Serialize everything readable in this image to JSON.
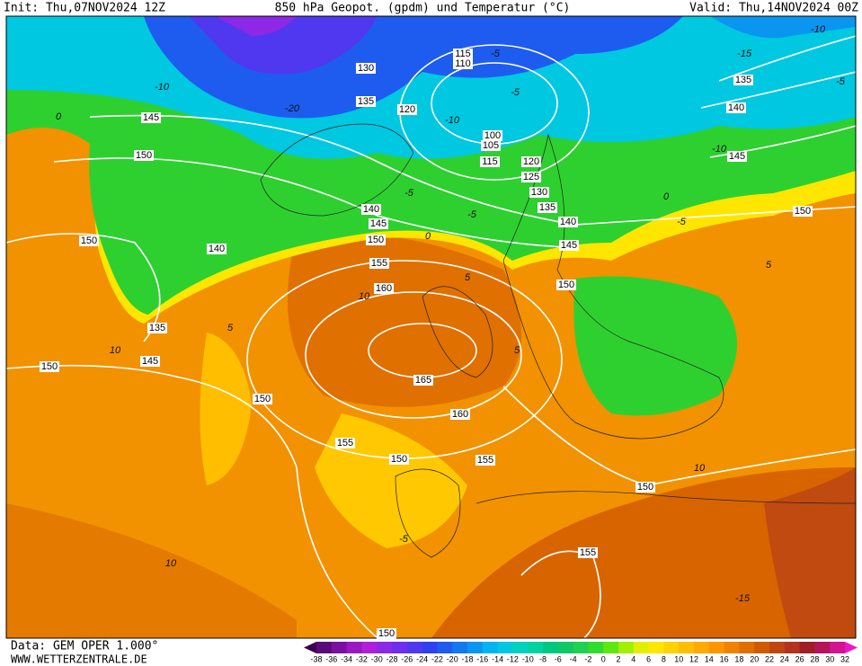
{
  "header": {
    "init": "Init: Thu,07NOV2024 12Z",
    "title": "850 hPa Geopot. (gpdm) und Temperatur (°C)",
    "valid": "Valid: Thu,14NOV2024 00Z"
  },
  "footer": {
    "data_source": "Data: GEM OPER 1.000°",
    "website": "WWW.WETTERZENTRALE.DE"
  },
  "map": {
    "geopotential_labels": [
      130,
      115,
      110,
      135,
      120,
      145,
      150,
      100,
      105,
      115,
      120,
      125,
      130,
      135,
      140,
      145,
      150,
      140,
      145,
      150,
      140,
      155,
      160,
      150,
      135,
      145,
      150,
      165,
      150,
      160,
      155,
      155,
      150,
      150,
      155,
      150,
      135,
      140,
      145,
      150
    ],
    "temperature_labels": [
      -10,
      -15,
      -5,
      -10,
      0,
      -5,
      -5,
      -10,
      -20,
      -5,
      -5,
      0,
      -10,
      -5,
      0,
      5,
      5,
      10,
      5,
      10,
      5,
      -5,
      10,
      -15,
      10
    ]
  },
  "colorbar": {
    "labels": [
      -38,
      -36,
      -34,
      -32,
      -30,
      -28,
      -26,
      -24,
      -22,
      -20,
      -18,
      -16,
      -14,
      -12,
      -10,
      -8,
      -6,
      -4,
      -2,
      0,
      2,
      4,
      6,
      8,
      10,
      12,
      14,
      16,
      18,
      20,
      22,
      24,
      26,
      28,
      30,
      32
    ],
    "colors": [
      "#3c0050",
      "#5a0a78",
      "#7a10a0",
      "#9a18c0",
      "#b020d8",
      "#8c28e6",
      "#6e30ee",
      "#5038f0",
      "#3040f0",
      "#1e5cf0",
      "#1478f0",
      "#0a96f0",
      "#00b4f0",
      "#00c8e0",
      "#00d2c0",
      "#00d2a0",
      "#00c880",
      "#10c864",
      "#20d050",
      "#30dc30",
      "#60e610",
      "#a0f000",
      "#e0f000",
      "#ffe600",
      "#ffd200",
      "#ffbe00",
      "#ffaa00",
      "#ff9600",
      "#f08200",
      "#e06e00",
      "#d05a00",
      "#c04610",
      "#b43220",
      "#a01e28",
      "#b4145a",
      "#d21490",
      "#f014c8"
    ]
  }
}
